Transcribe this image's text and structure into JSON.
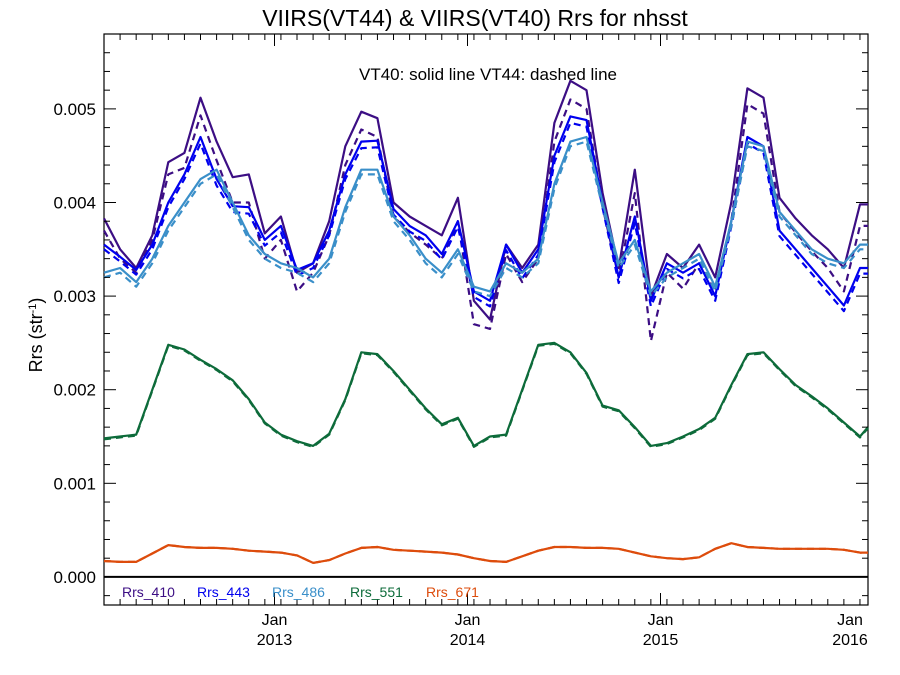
{
  "chart_data": {
    "type": "line",
    "title": "VIIRS(VT44) & VIIRS(VT40)  Rrs for nhsst",
    "annotation": "VT40: solid line   VT44: dashed line",
    "ylabel": "Rrs (str",
    "ylabel_sup": "-1",
    "ylabel_close": ")",
    "ylim": [
      -0.0003,
      0.0058
    ],
    "xlim": [
      0,
      47.5
    ],
    "yticks": [
      {
        "value": 0.0,
        "label": "0.000"
      },
      {
        "value": 0.001,
        "label": "0.001"
      },
      {
        "value": 0.002,
        "label": "0.002"
      },
      {
        "value": 0.003,
        "label": "0.003"
      },
      {
        "value": 0.004,
        "label": "0.004"
      },
      {
        "value": 0.005,
        "label": "0.005"
      }
    ],
    "xticks": [
      {
        "x": 10.6,
        "month": "Jan",
        "year": "2013"
      },
      {
        "x": 22.6,
        "month": "Jan",
        "year": "2014"
      },
      {
        "x": 34.6,
        "month": "Jan",
        "year": "2015"
      },
      {
        "x": 47.5,
        "month": "Jan",
        "year": "2016"
      }
    ],
    "x": [
      0,
      1,
      2,
      3,
      4,
      5,
      6,
      7,
      8,
      9,
      10,
      11,
      12,
      13,
      14,
      15,
      16,
      17,
      18,
      19,
      20,
      21,
      22,
      23,
      24,
      25,
      26,
      27,
      28,
      29,
      30,
      31,
      32,
      33,
      34,
      35,
      36,
      37,
      38,
      39,
      40,
      41,
      42,
      43,
      44,
      45,
      46,
      47,
      47.5
    ],
    "series": [
      {
        "name": "Rrs_410",
        "color": "#3c0e84",
        "vt40": [
          0.00383,
          0.0035,
          0.0033,
          0.00365,
          0.00443,
          0.00453,
          0.00512,
          0.00465,
          0.00427,
          0.0043,
          0.00367,
          0.00385,
          0.00325,
          0.00335,
          0.0038,
          0.0046,
          0.00497,
          0.0049,
          0.004,
          0.00385,
          0.00375,
          0.00365,
          0.00405,
          0.00295,
          0.00275,
          0.00355,
          0.0033,
          0.00355,
          0.00485,
          0.0053,
          0.0052,
          0.0041,
          0.0033,
          0.00435,
          0.003,
          0.00345,
          0.0033,
          0.00355,
          0.0032,
          0.004,
          0.00522,
          0.00512,
          0.00405,
          0.00383,
          0.00365,
          0.0035,
          0.0033,
          0.00398,
          0.00398
        ],
        "vt44": [
          0.0037,
          0.0034,
          0.00325,
          0.0036,
          0.0043,
          0.00437,
          0.00493,
          0.00445,
          0.004,
          0.004,
          0.0034,
          0.0036,
          0.00305,
          0.00325,
          0.00365,
          0.0044,
          0.00478,
          0.0047,
          0.00385,
          0.00368,
          0.00355,
          0.0034,
          0.0038,
          0.0027,
          0.00265,
          0.00345,
          0.00315,
          0.0034,
          0.00465,
          0.0051,
          0.005,
          0.00395,
          0.0032,
          0.0041,
          0.00252,
          0.00325,
          0.00308,
          0.00335,
          0.00305,
          0.0038,
          0.00505,
          0.00495,
          0.0039,
          0.00368,
          0.00348,
          0.0033,
          0.00305,
          0.00375,
          0.00375
        ]
      },
      {
        "name": "Rrs_443",
        "color": "#0000ee",
        "vt40": [
          0.00355,
          0.00342,
          0.00328,
          0.00355,
          0.004,
          0.0043,
          0.0047,
          0.00425,
          0.00396,
          0.00395,
          0.0036,
          0.00375,
          0.00328,
          0.00335,
          0.0037,
          0.0043,
          0.00465,
          0.00466,
          0.00393,
          0.00375,
          0.00365,
          0.00345,
          0.0038,
          0.00305,
          0.00295,
          0.00355,
          0.00325,
          0.0035,
          0.0045,
          0.00492,
          0.00488,
          0.004,
          0.0032,
          0.00385,
          0.00295,
          0.00335,
          0.00325,
          0.00335,
          0.003,
          0.0038,
          0.0047,
          0.0046,
          0.0037,
          0.0035,
          0.0033,
          0.0031,
          0.0029,
          0.0033,
          0.0033
        ],
        "vt44": [
          0.0035,
          0.00337,
          0.00323,
          0.0035,
          0.00395,
          0.00425,
          0.00463,
          0.00418,
          0.0039,
          0.00388,
          0.00354,
          0.00368,
          0.00322,
          0.0033,
          0.00365,
          0.00425,
          0.00458,
          0.00459,
          0.00387,
          0.00369,
          0.00359,
          0.00339,
          0.00374,
          0.00299,
          0.00289,
          0.00349,
          0.00319,
          0.00344,
          0.00443,
          0.00485,
          0.00481,
          0.00394,
          0.00314,
          0.00378,
          0.00289,
          0.00329,
          0.00319,
          0.00329,
          0.00295,
          0.00374,
          0.00463,
          0.00453,
          0.00364,
          0.00344,
          0.00324,
          0.00304,
          0.00284,
          0.00324,
          0.00324
        ]
      },
      {
        "name": "Rrs_486",
        "color": "#3a8fc9",
        "vt40": [
          0.00325,
          0.0033,
          0.00315,
          0.0034,
          0.00375,
          0.004,
          0.00425,
          0.00435,
          0.004,
          0.00365,
          0.00345,
          0.00335,
          0.0033,
          0.0032,
          0.0034,
          0.00395,
          0.00435,
          0.00435,
          0.00385,
          0.00365,
          0.0034,
          0.00325,
          0.0035,
          0.0031,
          0.00305,
          0.00335,
          0.00325,
          0.0034,
          0.0042,
          0.00465,
          0.0047,
          0.004,
          0.00335,
          0.0036,
          0.00305,
          0.00325,
          0.00335,
          0.00345,
          0.0031,
          0.0038,
          0.00465,
          0.0046,
          0.0039,
          0.0037,
          0.0035,
          0.0034,
          0.00335,
          0.00355,
          0.00355
        ],
        "vt44": [
          0.0032,
          0.00325,
          0.0031,
          0.00335,
          0.0037,
          0.00395,
          0.0042,
          0.0043,
          0.00395,
          0.0036,
          0.0034,
          0.0033,
          0.00325,
          0.00315,
          0.00335,
          0.0039,
          0.0043,
          0.0043,
          0.0038,
          0.0036,
          0.00335,
          0.0032,
          0.00345,
          0.00305,
          0.003,
          0.0033,
          0.0032,
          0.00335,
          0.00415,
          0.0046,
          0.00465,
          0.00395,
          0.0033,
          0.00355,
          0.003,
          0.0032,
          0.0033,
          0.0034,
          0.00305,
          0.00375,
          0.0046,
          0.00455,
          0.00385,
          0.00365,
          0.00345,
          0.00335,
          0.0033,
          0.0035,
          0.0035
        ]
      },
      {
        "name": "Rrs_551",
        "color": "#0d6b3a",
        "vt40": [
          0.00148,
          0.0015,
          0.00152,
          0.002,
          0.00248,
          0.00243,
          0.00232,
          0.00222,
          0.0021,
          0.0019,
          0.00165,
          0.00152,
          0.00145,
          0.0014,
          0.00153,
          0.0019,
          0.0024,
          0.00238,
          0.0022,
          0.002,
          0.0018,
          0.00163,
          0.0017,
          0.0014,
          0.0015,
          0.00152,
          0.002,
          0.00248,
          0.0025,
          0.0024,
          0.00218,
          0.00183,
          0.00178,
          0.0016,
          0.0014,
          0.00143,
          0.0015,
          0.00158,
          0.0017,
          0.00205,
          0.00238,
          0.0024,
          0.00222,
          0.00205,
          0.00193,
          0.0018,
          0.00165,
          0.0015,
          0.0016
        ],
        "vt44": [
          0.00147,
          0.00149,
          0.00151,
          0.00199,
          0.00247,
          0.00242,
          0.00231,
          0.00221,
          0.00209,
          0.00189,
          0.00164,
          0.00151,
          0.00144,
          0.00139,
          0.00152,
          0.00189,
          0.00239,
          0.00237,
          0.00219,
          0.00199,
          0.00179,
          0.00162,
          0.00169,
          0.00139,
          0.00149,
          0.00151,
          0.00199,
          0.00247,
          0.00249,
          0.00239,
          0.00217,
          0.00182,
          0.00177,
          0.00159,
          0.00139,
          0.00142,
          0.00149,
          0.00157,
          0.00169,
          0.00204,
          0.00237,
          0.00239,
          0.00221,
          0.00204,
          0.00192,
          0.00179,
          0.00164,
          0.00149,
          0.00159
        ]
      },
      {
        "name": "Rrs_671",
        "color": "#dd4c0c",
        "vt40": [
          0.00017,
          0.00016,
          0.00016,
          0.00025,
          0.00034,
          0.00032,
          0.00031,
          0.00031,
          0.0003,
          0.00028,
          0.00027,
          0.00026,
          0.00023,
          0.00015,
          0.00018,
          0.00025,
          0.00031,
          0.00032,
          0.00029,
          0.00028,
          0.00027,
          0.00026,
          0.00024,
          0.0002,
          0.00017,
          0.00016,
          0.00022,
          0.00028,
          0.00032,
          0.00032,
          0.00031,
          0.00031,
          0.0003,
          0.00026,
          0.00022,
          0.0002,
          0.00019,
          0.00021,
          0.0003,
          0.00036,
          0.00032,
          0.00031,
          0.0003,
          0.0003,
          0.0003,
          0.0003,
          0.00029,
          0.00026,
          0.00026
        ],
        "vt44": [
          0.00017,
          0.00016,
          0.00016,
          0.00025,
          0.00034,
          0.00032,
          0.00031,
          0.00031,
          0.0003,
          0.00028,
          0.00027,
          0.00026,
          0.00023,
          0.00015,
          0.00018,
          0.00025,
          0.00031,
          0.00032,
          0.00029,
          0.00028,
          0.00027,
          0.00026,
          0.00024,
          0.0002,
          0.00017,
          0.00016,
          0.00022,
          0.00028,
          0.00032,
          0.00032,
          0.00031,
          0.00031,
          0.0003,
          0.00026,
          0.00022,
          0.0002,
          0.00019,
          0.00021,
          0.0003,
          0.00036,
          0.00032,
          0.00031,
          0.0003,
          0.0003,
          0.0003,
          0.0003,
          0.00029,
          0.00026,
          0.00026
        ]
      }
    ],
    "legend_placement": "bottom-left",
    "grid": false
  }
}
